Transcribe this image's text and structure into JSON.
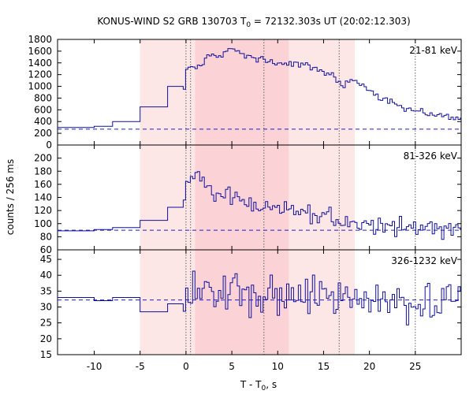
{
  "title_main": "KONUS-WIND S2 GRB 130703 T",
  "title_sub": "0",
  "title_rest": " = 72132.303s UT (20:02:12.303)",
  "ylabel": "counts / 256 ms",
  "xlabel_main": "T - T",
  "xlabel_sub": "0",
  "xlabel_rest": ", s",
  "colors": {
    "curve": "#1010a0",
    "background_line": "#2020c0",
    "band_outer": "#fde6e6",
    "band_inner": "#fbd2d6",
    "vline": "#555555"
  },
  "chart_data": {
    "type": "line",
    "render": "step",
    "x_range": [
      -14,
      30
    ],
    "x_ticks": [
      -10,
      -5,
      0,
      5,
      10,
      15,
      20,
      25
    ],
    "shaded_intervals": [
      {
        "level": "outer",
        "x": [
          -5,
          18.4
        ]
      },
      {
        "level": "inner",
        "x": [
          1.0,
          11.2
        ]
      }
    ],
    "vertical_lines": [
      0,
      0.5,
      8.5,
      16.7,
      25
    ],
    "panels": [
      {
        "label": "21-81 keV",
        "ylim": [
          0,
          1800
        ],
        "y_ticks": [
          0,
          200,
          400,
          600,
          800,
          1000,
          1200,
          1400,
          1600,
          1800
        ],
        "background_level": 270,
        "x_start": -14,
        "bin_width": 0.256,
        "segments": [
          {
            "x": [
              -14,
              -10
            ],
            "y": 300
          },
          {
            "x": [
              -10,
              -8
            ],
            "y": 320
          },
          {
            "x": [
              -8,
              -5
            ],
            "y": 400
          },
          {
            "x": [
              -5,
              -2
            ],
            "y": 650
          },
          {
            "x": [
              -2,
              -0.3
            ],
            "y": 1000
          }
        ],
        "anchors": [
          [
            -0.3,
            1020
          ],
          [
            0,
            1300
          ],
          [
            0.5,
            1330
          ],
          [
            1,
            1350
          ],
          [
            1.5,
            1380
          ],
          [
            2,
            1450
          ],
          [
            3,
            1520
          ],
          [
            4,
            1560
          ],
          [
            5,
            1620
          ],
          [
            6,
            1560
          ],
          [
            7,
            1480
          ],
          [
            8,
            1460
          ],
          [
            9,
            1420
          ],
          [
            10,
            1400
          ],
          [
            11,
            1380
          ],
          [
            12,
            1370
          ],
          [
            13,
            1340
          ],
          [
            14,
            1300
          ],
          [
            15,
            1250
          ],
          [
            16,
            1150
          ],
          [
            17,
            1000
          ],
          [
            18,
            1120
          ],
          [
            19,
            1000
          ],
          [
            20,
            880
          ],
          [
            22,
            760
          ],
          [
            24,
            620
          ],
          [
            26,
            540
          ],
          [
            28,
            500
          ],
          [
            30,
            440
          ]
        ],
        "noise": 45
      },
      {
        "label": "81-326 keV",
        "ylim": [
          60,
          220
        ],
        "y_ticks": [
          60,
          80,
          100,
          120,
          140,
          160,
          180,
          200
        ],
        "background_level": 90,
        "x_start": -14,
        "bin_width": 0.256,
        "segments": [
          {
            "x": [
              -14,
              -10
            ],
            "y": 89
          },
          {
            "x": [
              -10,
              -8
            ],
            "y": 91
          },
          {
            "x": [
              -8,
              -5
            ],
            "y": 94
          },
          {
            "x": [
              -5,
              -2
            ],
            "y": 105
          },
          {
            "x": [
              -2,
              -0.3
            ],
            "y": 125
          }
        ],
        "anchors": [
          [
            -0.3,
            130
          ],
          [
            0,
            165
          ],
          [
            1,
            175
          ],
          [
            2,
            165
          ],
          [
            3,
            150
          ],
          [
            4,
            145
          ],
          [
            5,
            140
          ],
          [
            6,
            132
          ],
          [
            7,
            130
          ],
          [
            8,
            128
          ],
          [
            9,
            125
          ],
          [
            10,
            122
          ],
          [
            11,
            120
          ],
          [
            12,
            118
          ],
          [
            13,
            115
          ],
          [
            14,
            112
          ],
          [
            15,
            112
          ],
          [
            16,
            105
          ],
          [
            17,
            100
          ],
          [
            18,
            102
          ],
          [
            20,
            100
          ],
          [
            22,
            98
          ],
          [
            24,
            95
          ],
          [
            26,
            94
          ],
          [
            28,
            92
          ],
          [
            30,
            92
          ]
        ],
        "noise": 11
      },
      {
        "label": "326-1232 keV",
        "ylim": [
          15,
          48
        ],
        "y_ticks": [
          15,
          20,
          25,
          30,
          35,
          40,
          45
        ],
        "background_level": 32.2,
        "x_start": -14,
        "bin_width": 0.256,
        "segments": [
          {
            "x": [
              -14,
              -10
            ],
            "y": 33
          },
          {
            "x": [
              -10,
              -8
            ],
            "y": 32
          },
          {
            "x": [
              -8,
              -5
            ],
            "y": 33
          },
          {
            "x": [
              -5,
              -2
            ],
            "y": 28.5
          },
          {
            "x": [
              -2,
              -0.3
            ],
            "y": 31
          }
        ],
        "anchors": [
          [
            -0.3,
            32
          ],
          [
            0,
            34
          ],
          [
            5,
            34
          ],
          [
            10,
            33
          ],
          [
            15,
            33
          ],
          [
            20,
            32
          ],
          [
            25,
            32
          ],
          [
            30,
            33
          ]
        ],
        "noise": 5
      }
    ]
  }
}
